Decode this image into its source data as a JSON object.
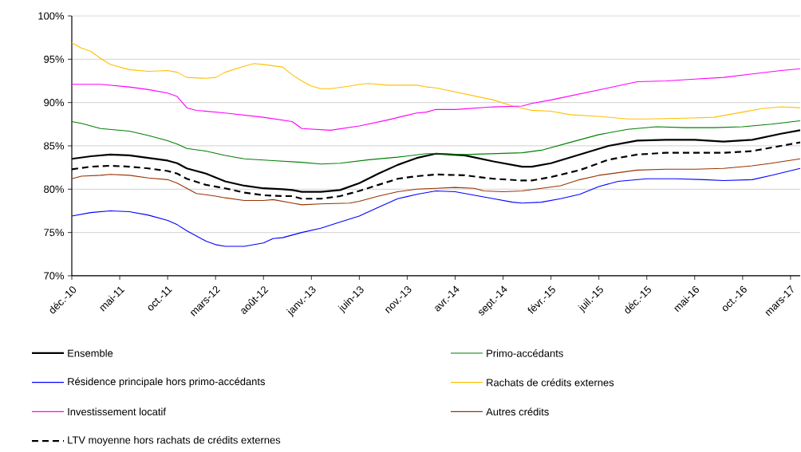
{
  "chart_data": {
    "type": "line",
    "xlim": [
      "2010-12",
      "2017-04"
    ],
    "ylim": [
      70,
      100
    ],
    "xticks": [
      {
        "value": "2010-12",
        "label": "déc.-10"
      },
      {
        "value": "2011-05",
        "label": "mai-11"
      },
      {
        "value": "2011-10",
        "label": "oct.-11"
      },
      {
        "value": "2012-03",
        "label": "mars-12"
      },
      {
        "value": "2012-08",
        "label": "août-12"
      },
      {
        "value": "2013-01",
        "label": "janv.-13"
      },
      {
        "value": "2013-06",
        "label": "juin-13"
      },
      {
        "value": "2013-11",
        "label": "nov.-13"
      },
      {
        "value": "2014-04",
        "label": "avr.-14"
      },
      {
        "value": "2014-09",
        "label": "sept.-14"
      },
      {
        "value": "2015-02",
        "label": "févr.-15"
      },
      {
        "value": "2015-07",
        "label": "juil.-15"
      },
      {
        "value": "2015-12",
        "label": "déc.-15"
      },
      {
        "value": "2016-05",
        "label": "mai-16"
      },
      {
        "value": "2016-10",
        "label": "oct.-16"
      },
      {
        "value": "2017-03",
        "label": "mars-17"
      }
    ],
    "yticks": [
      {
        "value": 70,
        "label": "70%"
      },
      {
        "value": 75,
        "label": "75%"
      },
      {
        "value": 80,
        "label": "80%"
      },
      {
        "value": 85,
        "label": "85%"
      },
      {
        "value": 90,
        "label": "90%"
      },
      {
        "value": 95,
        "label": "95%"
      },
      {
        "value": 100,
        "label": "100%"
      }
    ],
    "grid": "y",
    "legend": "bottom",
    "marker": "none",
    "series": [
      {
        "name": "Ensemble",
        "color": "#000000",
        "line_style": "solid",
        "x": [
          "2010-12",
          "2011-02",
          "2011-04",
          "2011-06",
          "2011-08",
          "2011-10",
          "2011-11",
          "2011-12",
          "2012-02",
          "2012-04",
          "2012-06",
          "2012-08",
          "2012-10",
          "2012-11",
          "2012-12",
          "2013-02",
          "2013-04",
          "2013-06",
          "2013-08",
          "2013-10",
          "2013-12",
          "2014-02",
          "2014-05",
          "2014-08",
          "2014-11",
          "2014-12",
          "2015-02",
          "2015-05",
          "2015-08",
          "2015-11",
          "2016-02",
          "2016-05",
          "2016-08",
          "2016-11",
          "2017-02",
          "2017-04"
        ],
        "values": [
          83.5,
          83.8,
          84.0,
          83.9,
          83.6,
          83.3,
          83.0,
          82.4,
          81.8,
          80.9,
          80.4,
          80.1,
          80.0,
          79.9,
          79.7,
          79.7,
          79.9,
          80.7,
          81.8,
          82.8,
          83.6,
          84.1,
          83.9,
          83.2,
          82.6,
          82.6,
          83.0,
          84.0,
          85.0,
          85.6,
          85.7,
          85.7,
          85.5,
          85.7,
          86.4,
          86.8
        ]
      },
      {
        "name": "Primo-accédants",
        "color": "#008000",
        "line_style": "solid",
        "x": [
          "2010-12",
          "2011-01",
          "2011-03",
          "2011-06",
          "2011-08",
          "2011-10",
          "2011-11",
          "2011-12",
          "2012-02",
          "2012-04",
          "2012-06",
          "2012-09",
          "2012-12",
          "2013-02",
          "2013-04",
          "2013-07",
          "2013-10",
          "2014-01",
          "2014-02",
          "2014-05",
          "2014-08",
          "2014-11",
          "2015-01",
          "2015-04",
          "2015-07",
          "2015-10",
          "2016-01",
          "2016-04",
          "2016-07",
          "2016-10",
          "2017-01",
          "2017-04"
        ],
        "values": [
          87.8,
          87.6,
          87.0,
          86.7,
          86.2,
          85.6,
          85.2,
          84.7,
          84.4,
          83.9,
          83.5,
          83.3,
          83.1,
          82.9,
          83.0,
          83.4,
          83.7,
          84.1,
          84.1,
          84.0,
          84.1,
          84.2,
          84.5,
          85.4,
          86.3,
          86.9,
          87.2,
          87.1,
          87.1,
          87.2,
          87.5,
          87.9
        ]
      },
      {
        "name": "Résidence principale hors primo-accédants",
        "color": "#0000ff",
        "line_style": "solid",
        "x": [
          "2010-12",
          "2011-02",
          "2011-04",
          "2011-06",
          "2011-08",
          "2011-10",
          "2011-11",
          "2011-12",
          "2012-02",
          "2012-03",
          "2012-04",
          "2012-06",
          "2012-08",
          "2012-09",
          "2012-10",
          "2012-12",
          "2013-02",
          "2013-04",
          "2013-06",
          "2013-08",
          "2013-10",
          "2013-12",
          "2014-02",
          "2014-04",
          "2014-06",
          "2014-08",
          "2014-10",
          "2014-11",
          "2015-01",
          "2015-03",
          "2015-05",
          "2015-07",
          "2015-09",
          "2015-12",
          "2016-03",
          "2016-06",
          "2016-08",
          "2016-11",
          "2017-01",
          "2017-04"
        ],
        "values": [
          76.9,
          77.3,
          77.5,
          77.4,
          77.0,
          76.4,
          75.9,
          75.2,
          74.0,
          73.6,
          73.4,
          73.4,
          73.8,
          74.3,
          74.4,
          75.0,
          75.5,
          76.2,
          76.9,
          77.9,
          78.9,
          79.4,
          79.8,
          79.7,
          79.3,
          78.9,
          78.5,
          78.4,
          78.5,
          78.9,
          79.4,
          80.3,
          80.9,
          81.2,
          81.2,
          81.1,
          81.0,
          81.1,
          81.6,
          82.4
        ]
      },
      {
        "name": "Rachats de crédits externes",
        "color": "#ffc000",
        "line_style": "solid",
        "x": [
          "2010-12",
          "2011-01",
          "2011-02",
          "2011-03",
          "2011-04",
          "2011-06",
          "2011-08",
          "2011-10",
          "2011-11",
          "2011-12",
          "2012-02",
          "2012-03",
          "2012-04",
          "2012-06",
          "2012-07",
          "2012-08",
          "2012-10",
          "2012-11",
          "2012-12",
          "2013-01",
          "2013-02",
          "2013-03",
          "2013-05",
          "2013-06",
          "2013-07",
          "2013-09",
          "2013-12",
          "2014-01",
          "2014-02",
          "2014-05",
          "2014-08",
          "2014-10",
          "2014-12",
          "2015-02",
          "2015-04",
          "2015-07",
          "2015-10",
          "2015-12",
          "2016-04",
          "2016-07",
          "2016-10",
          "2016-12",
          "2017-02",
          "2017-04"
        ],
        "values": [
          96.9,
          96.3,
          95.9,
          95.1,
          94.4,
          93.8,
          93.6,
          93.7,
          93.5,
          92.9,
          92.8,
          92.9,
          93.5,
          94.2,
          94.5,
          94.4,
          94.1,
          93.2,
          92.5,
          91.9,
          91.6,
          91.6,
          91.9,
          92.1,
          92.2,
          92.0,
          92.0,
          91.8,
          91.7,
          91.0,
          90.3,
          89.6,
          89.1,
          89.0,
          88.6,
          88.4,
          88.1,
          88.1,
          88.2,
          88.3,
          88.9,
          89.3,
          89.5,
          89.4
        ]
      },
      {
        "name": "Investissement locatif",
        "color": "#ff00ff",
        "line_style": "solid",
        "x": [
          "2010-12",
          "2011-03",
          "2011-06",
          "2011-08",
          "2011-10",
          "2011-11",
          "2011-12",
          "2012-01",
          "2012-04",
          "2012-08",
          "2012-11",
          "2012-12",
          "2013-03",
          "2013-06",
          "2013-09",
          "2013-12",
          "2014-01",
          "2014-02",
          "2014-04",
          "2014-08",
          "2014-11",
          "2014-12",
          "2015-02",
          "2015-05",
          "2015-08",
          "2015-11",
          "2016-02",
          "2016-05",
          "2016-08",
          "2016-11",
          "2017-02",
          "2017-04"
        ],
        "values": [
          92.1,
          92.1,
          91.8,
          91.5,
          91.1,
          90.7,
          89.4,
          89.1,
          88.8,
          88.3,
          87.8,
          87.0,
          86.8,
          87.3,
          88.0,
          88.8,
          88.9,
          89.2,
          89.2,
          89.5,
          89.6,
          89.9,
          90.3,
          91.0,
          91.7,
          92.4,
          92.5,
          92.7,
          92.9,
          93.3,
          93.7,
          93.9
        ]
      },
      {
        "name": "Autres crédits",
        "color": "#993300",
        "line_style": "solid",
        "x": [
          "2010-12",
          "2011-01",
          "2011-03",
          "2011-04",
          "2011-06",
          "2011-08",
          "2011-10",
          "2011-11",
          "2011-12",
          "2012-01",
          "2012-03",
          "2012-04",
          "2012-06",
          "2012-08",
          "2012-09",
          "2012-11",
          "2012-12",
          "2013-02",
          "2013-05",
          "2013-06",
          "2013-08",
          "2013-10",
          "2013-12",
          "2014-02",
          "2014-04",
          "2014-06",
          "2014-07",
          "2014-09",
          "2014-11",
          "2015-01",
          "2015-03",
          "2015-05",
          "2015-07",
          "2015-09",
          "2015-11",
          "2016-02",
          "2016-05",
          "2016-08",
          "2016-11",
          "2017-01",
          "2017-04"
        ],
        "values": [
          81.2,
          81.5,
          81.6,
          81.7,
          81.6,
          81.3,
          81.1,
          80.7,
          80.1,
          79.5,
          79.2,
          79.0,
          78.7,
          78.7,
          78.8,
          78.4,
          78.2,
          78.3,
          78.4,
          78.6,
          79.2,
          79.7,
          80.0,
          80.1,
          80.2,
          80.1,
          79.8,
          79.7,
          79.8,
          80.1,
          80.4,
          81.1,
          81.6,
          81.9,
          82.2,
          82.3,
          82.3,
          82.4,
          82.7,
          83.0,
          83.5
        ]
      },
      {
        "name": "LTV moyenne hors rachats de crédits externes",
        "color": "#000000",
        "line_style": "dashed",
        "x": [
          "2010-12",
          "2011-02",
          "2011-04",
          "2011-06",
          "2011-08",
          "2011-10",
          "2011-11",
          "2011-12",
          "2012-02",
          "2012-04",
          "2012-06",
          "2012-08",
          "2012-10",
          "2012-11",
          "2012-12",
          "2013-02",
          "2013-04",
          "2013-06",
          "2013-08",
          "2013-10",
          "2013-12",
          "2014-02",
          "2014-05",
          "2014-08",
          "2014-11",
          "2014-12",
          "2015-02",
          "2015-05",
          "2015-08",
          "2015-11",
          "2016-02",
          "2016-05",
          "2016-08",
          "2016-11",
          "2017-02",
          "2017-04"
        ],
        "values": [
          82.3,
          82.6,
          82.7,
          82.6,
          82.4,
          82.1,
          81.8,
          81.2,
          80.5,
          80.1,
          79.6,
          79.3,
          79.2,
          79.2,
          78.9,
          78.9,
          79.2,
          79.8,
          80.5,
          81.2,
          81.5,
          81.7,
          81.6,
          81.2,
          81.0,
          81.0,
          81.4,
          82.2,
          83.4,
          84.0,
          84.2,
          84.2,
          84.2,
          84.4,
          85.0,
          85.4
        ]
      }
    ]
  }
}
